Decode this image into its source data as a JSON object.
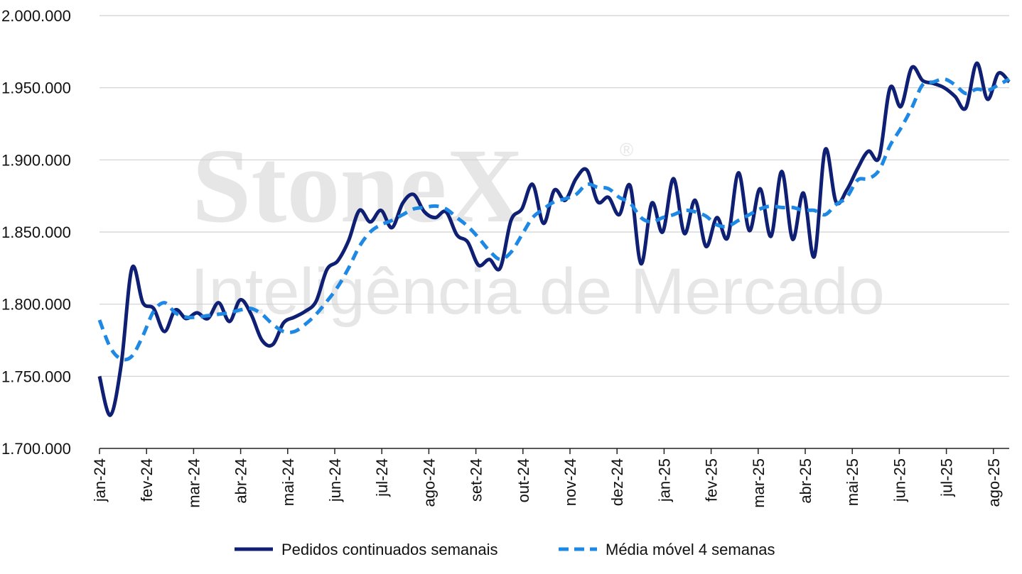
{
  "watermark": {
    "brand": "StoneX",
    "registered": "®",
    "tagline": "Inteligência de Mercado"
  },
  "chart_data": {
    "type": "line",
    "title": "",
    "xlabel": "",
    "ylabel": "",
    "ylim": [
      1700000,
      2000000
    ],
    "yticks": [
      1700000,
      1750000,
      1800000,
      1850000,
      1900000,
      1950000,
      2000000
    ],
    "ytick_labels": [
      "1.700.000",
      "1.750.000",
      "1.800.000",
      "1.850.000",
      "1.900.000",
      "1.950.000",
      "2.000.000"
    ],
    "month_labels": [
      "jan-24",
      "fev-24",
      "mar-24",
      "abr-24",
      "mai-24",
      "jun-24",
      "jul-24",
      "ago-24",
      "set-24",
      "out-24",
      "nov-24",
      "dez-24",
      "jan-25",
      "fev-25",
      "mar-25",
      "abr-25",
      "mai-25",
      "jun-25",
      "jul-25",
      "ago-25"
    ],
    "grid": true,
    "legend_position": "bottom",
    "colors": {
      "weekly": "#0f1f73",
      "moving_avg": "#1e88e5",
      "grid": "#d0d0d0"
    },
    "series": [
      {
        "name": "Pedidos continuados semanais",
        "style": "solid",
        "values": [
          1750000,
          1723000,
          1758000,
          1825000,
          1801000,
          1797000,
          1781000,
          1796000,
          1790000,
          1794000,
          1790000,
          1801000,
          1788000,
          1803000,
          1793000,
          1775000,
          1772000,
          1787000,
          1791000,
          1795000,
          1802000,
          1824000,
          1830000,
          1844000,
          1865000,
          1857000,
          1865000,
          1853000,
          1870000,
          1876000,
          1864000,
          1860000,
          1864000,
          1848000,
          1843000,
          1827000,
          1831000,
          1825000,
          1858000,
          1866000,
          1883000,
          1856000,
          1879000,
          1872000,
          1887000,
          1893000,
          1871000,
          1874000,
          1862000,
          1882000,
          1828000,
          1870000,
          1850000,
          1887000,
          1849000,
          1872000,
          1840000,
          1860000,
          1846000,
          1891000,
          1851000,
          1880000,
          1847000,
          1892000,
          1845000,
          1877000,
          1833000,
          1907000,
          1871000,
          1879000,
          1894000,
          1906000,
          1902000,
          1950000,
          1937000,
          1964000,
          1955000,
          1953000,
          1950000,
          1944000,
          1936000,
          1967000,
          1942000,
          1960000,
          1954000
        ]
      },
      {
        "name": "Média móvel 4 semanas",
        "style": "dashed",
        "values": [
          1789000,
          1770000,
          1762000,
          1764000,
          1778000,
          1795000,
          1801000,
          1794000,
          1791000,
          1791000,
          1792000,
          1793000,
          1794000,
          1796000,
          1797000,
          1793000,
          1786000,
          1781000,
          1781000,
          1786000,
          1793000,
          1802000,
          1812000,
          1825000,
          1840000,
          1850000,
          1855000,
          1858000,
          1862000,
          1866000,
          1867000,
          1868000,
          1866000,
          1860000,
          1854000,
          1846000,
          1837000,
          1831000,
          1836000,
          1848000,
          1860000,
          1866000,
          1871000,
          1873000,
          1876000,
          1883000,
          1881000,
          1880000,
          1874000,
          1870000,
          1860000,
          1857000,
          1860000,
          1862000,
          1865000,
          1864000,
          1861000,
          1855000,
          1854000,
          1858000,
          1862000,
          1866000,
          1868000,
          1867000,
          1867000,
          1865000,
          1865000,
          1862000,
          1869000,
          1874000,
          1886000,
          1887000,
          1893000,
          1910000,
          1922000,
          1936000,
          1952000,
          1954000,
          1956000,
          1952000,
          1946000,
          1949000,
          1948000,
          1952000,
          1956000
        ]
      }
    ]
  }
}
